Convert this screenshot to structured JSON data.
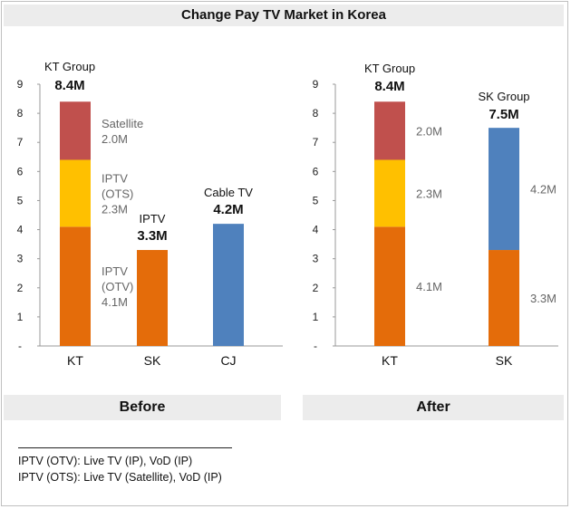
{
  "title": "Change Pay TV Market in Korea",
  "colors": {
    "iptv_otv": "#e46c0a",
    "iptv_ots": "#ffc000",
    "satellite": "#c0504d",
    "cable": "#4f81bd"
  },
  "chart_data": [
    {
      "type": "bar",
      "stacked": true,
      "section_label": "Before",
      "ylim": [
        0,
        9
      ],
      "yticks": [
        "-",
        "1",
        "2",
        "3",
        "4",
        "5",
        "6",
        "7",
        "8",
        "9"
      ],
      "categories": [
        "KT",
        "SK",
        "CJ"
      ],
      "series": [
        {
          "name": "IPTV (OTV)",
          "color_key": "iptv_otv",
          "values": [
            4.1,
            3.3,
            0
          ],
          "labels": [
            "IPTV\n(OTV)\n4.1M",
            "",
            ""
          ]
        },
        {
          "name": "IPTV (OTS)",
          "color_key": "iptv_ots",
          "values": [
            2.3,
            0,
            0
          ],
          "labels": [
            "IPTV\n(OTS)\n2.3M",
            "",
            ""
          ]
        },
        {
          "name": "Satellite",
          "color_key": "satellite",
          "values": [
            2.0,
            0,
            0
          ],
          "labels": [
            "Satellite\n2.0M",
            "",
            ""
          ]
        },
        {
          "name": "Cable TV",
          "color_key": "cable",
          "values": [
            0,
            0,
            4.2
          ],
          "labels": [
            "",
            "",
            ""
          ]
        }
      ],
      "group_labels": [
        {
          "name": "KT Group",
          "total": "8.4M"
        },
        {
          "name": "IPTV",
          "total": "3.3M"
        },
        {
          "name": "Cable TV",
          "total": "4.2M"
        }
      ]
    },
    {
      "type": "bar",
      "stacked": true,
      "section_label": "After",
      "ylim": [
        0,
        9
      ],
      "yticks": [
        "-",
        "1",
        "2",
        "3",
        "4",
        "5",
        "6",
        "7",
        "8",
        "9"
      ],
      "categories": [
        "KT",
        "SK"
      ],
      "series": [
        {
          "name": "IPTV (OTV)",
          "color_key": "iptv_otv",
          "values": [
            4.1,
            3.3
          ],
          "labels": [
            "4.1M",
            "3.3M"
          ]
        },
        {
          "name": "IPTV (OTS)",
          "color_key": "iptv_ots",
          "values": [
            2.3,
            0
          ],
          "labels": [
            "2.3M",
            ""
          ]
        },
        {
          "name": "Satellite",
          "color_key": "satellite",
          "values": [
            2.0,
            0
          ],
          "labels": [
            "2.0M",
            ""
          ]
        },
        {
          "name": "Cable TV",
          "color_key": "cable",
          "values": [
            0,
            4.2
          ],
          "labels": [
            "",
            "4.2M"
          ]
        }
      ],
      "group_labels": [
        {
          "name": "KT Group",
          "total": "8.4M"
        },
        {
          "name": "SK Group",
          "total": "7.5M"
        }
      ]
    }
  ],
  "footnotes": [
    "IPTV (OTV): Live TV (IP), VoD (IP)",
    "IPTV (OTS): Live TV (Satellite), VoD (IP)"
  ]
}
